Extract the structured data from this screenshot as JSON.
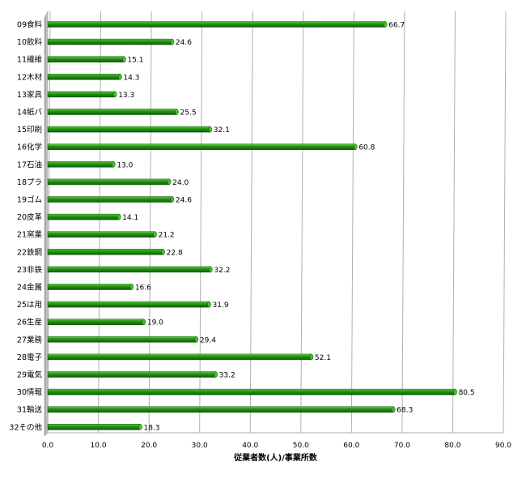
{
  "chart_data": {
    "type": "bar",
    "orientation": "horizontal",
    "categories": [
      "09食料",
      "10飲料",
      "11繊維",
      "12木材",
      "13家具",
      "14紙パ",
      "15印刷",
      "16化学",
      "17石油",
      "18プラ",
      "19ゴム",
      "20皮革",
      "21窯業",
      "22鉄鋼",
      "23非鉄",
      "24金属",
      "25は用",
      "26生産",
      "27業務",
      "28電子",
      "29電気",
      "30情報",
      "31輸送",
      "32その他"
    ],
    "values": [
      66.7,
      24.6,
      15.1,
      14.3,
      13.3,
      25.5,
      32.1,
      60.8,
      13.0,
      24.0,
      24.6,
      14.1,
      21.2,
      22.8,
      32.2,
      16.6,
      31.9,
      19.0,
      29.4,
      52.1,
      33.2,
      80.5,
      68.3,
      18.3
    ],
    "value_labels": [
      "66.7",
      "24.6",
      "15.1",
      "14.3",
      "13.3",
      "25.5",
      "32.1",
      "60.8",
      "13.0",
      "24.0",
      "24.6",
      "14.1",
      "21.2",
      "22.8",
      "32.2",
      "16.6",
      "31.9",
      "19.0",
      "29.4",
      "52.1",
      "33.2",
      "80.5",
      "68.3",
      "18.3"
    ],
    "xlim": [
      0,
      90
    ],
    "x_ticks": [
      "0.0",
      "10.0",
      "20.0",
      "30.0",
      "40.0",
      "50.0",
      "60.0",
      "70.0",
      "80.0",
      "90.0"
    ],
    "xlabel": "従業者数(人)/事業所数",
    "grid": true,
    "bar_color": "#1f8a10",
    "bar_color_light": "#43c22a",
    "bar_color_dark": "#0f5a08",
    "grid_color": "#b0b0b0",
    "wall_color": "#c8c8c8"
  }
}
